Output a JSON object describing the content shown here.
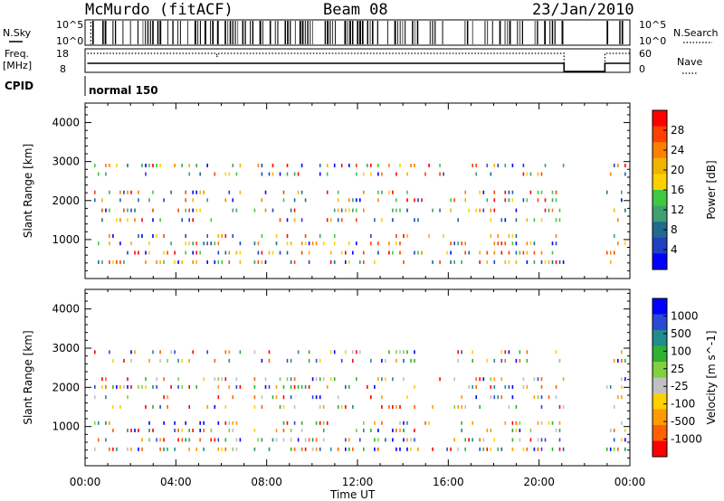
{
  "header": {
    "station": "McMurdo (fitACF)",
    "beam": "Beam 08",
    "date": "23/Jan/2010"
  },
  "status_panels": {
    "nsky_label": "N.Sky",
    "nsearch_label": "N.Search",
    "nsky_ticks": [
      "10^5",
      "10^0"
    ],
    "nsearch_ticks": [
      "10^5",
      "10^0"
    ],
    "freq_label": "Freq.",
    "freq_unit": "[MHz]",
    "freq_ticks": [
      "18",
      "8"
    ],
    "nave_label": "Nave",
    "nave_ticks": [
      "60",
      "0"
    ],
    "cpid_label": "CPID",
    "cpid_value": "normal 150"
  },
  "chart_data": [
    {
      "type": "heatmap",
      "panel": "power",
      "ylabel": "Slant Range [km]",
      "xlabel": "Time UT",
      "ylim": [
        0,
        4500
      ],
      "yticks": [
        1000,
        2000,
        3000,
        4000
      ],
      "x_ticks": [
        "00:00",
        "04:00",
        "08:00",
        "12:00",
        "16:00",
        "20:00",
        "00:00"
      ],
      "colorbar": {
        "label": "Power [dB]",
        "ticks": [
          "28",
          "24",
          "20",
          "16",
          "12",
          "8",
          "4"
        ],
        "colors": [
          "#ff0000",
          "#ff4000",
          "#ff8000",
          "#f0b400",
          "#ffd000",
          "#40c840",
          "#40a070",
          "#206a90",
          "#2040c0",
          "#0000ff"
        ]
      },
      "range_gates_km": [
        420,
        660,
        900,
        1090,
        1500,
        1750,
        2010,
        2210,
        2680,
        2900
      ]
    },
    {
      "type": "heatmap",
      "panel": "velocity",
      "ylabel": "Slant Range [km]",
      "xlabel": "Time UT",
      "ylim": [
        0,
        4500
      ],
      "yticks": [
        1000,
        2000,
        3000,
        4000
      ],
      "x_ticks": [
        "00:00",
        "04:00",
        "08:00",
        "12:00",
        "16:00",
        "20:00",
        "00:00"
      ],
      "colorbar": {
        "label": "Velocity [m s^-1]",
        "ticks": [
          "1000",
          "500",
          "100",
          "25",
          "-25",
          "-100",
          "-500",
          "-1000"
        ],
        "colors": [
          "#0000ff",
          "#2a4ad6",
          "#208c8c",
          "#30b030",
          "#80d040",
          "#c0c0c0",
          "#ffd000",
          "#ff9a00",
          "#ff6000",
          "#ff0000"
        ]
      },
      "range_gates_km": [
        420,
        660,
        900,
        1090,
        1500,
        1750,
        2010,
        2210,
        2680,
        2900
      ]
    }
  ],
  "footer": {
    "time_label": "Time UT"
  }
}
